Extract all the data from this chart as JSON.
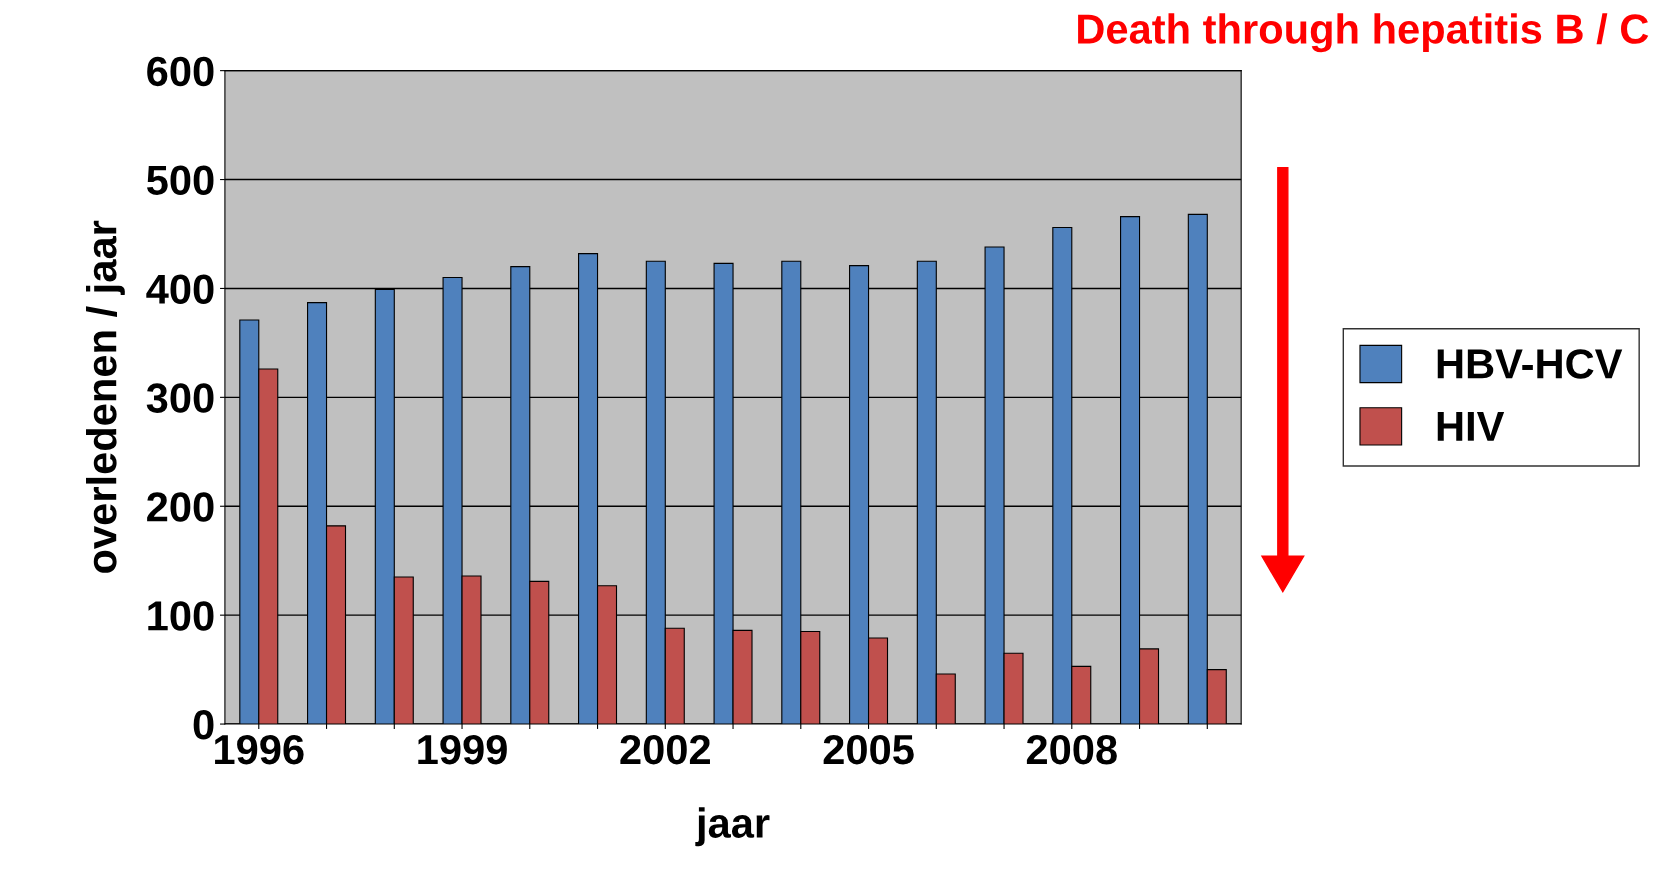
{
  "chart_data": {
    "type": "bar",
    "title": "Death through hepatitis B / C",
    "xlabel": "jaar",
    "ylabel": "overledenen / jaar",
    "categories": [
      "1996",
      null,
      null,
      "1999",
      null,
      null,
      "2002",
      null,
      null,
      "2005",
      null,
      null,
      "2008",
      null,
      null
    ],
    "series": [
      {
        "name": "HBV-HCV",
        "color": "#4f81bd",
        "values": [
          371,
          387,
          399,
          410,
          420,
          432,
          425,
          423,
          425,
          421,
          425,
          438,
          456,
          466,
          468
        ]
      },
      {
        "name": "HIV",
        "color": "#c0504d",
        "values": [
          326,
          182,
          135,
          136,
          131,
          127,
          88,
          86,
          85,
          79,
          46,
          65,
          53,
          69,
          50
        ]
      }
    ],
    "ylim": [
      0,
      600
    ],
    "yticks": [
      0,
      100,
      200,
      300,
      400,
      500,
      600
    ],
    "grid": "y",
    "legend": "right"
  }
}
